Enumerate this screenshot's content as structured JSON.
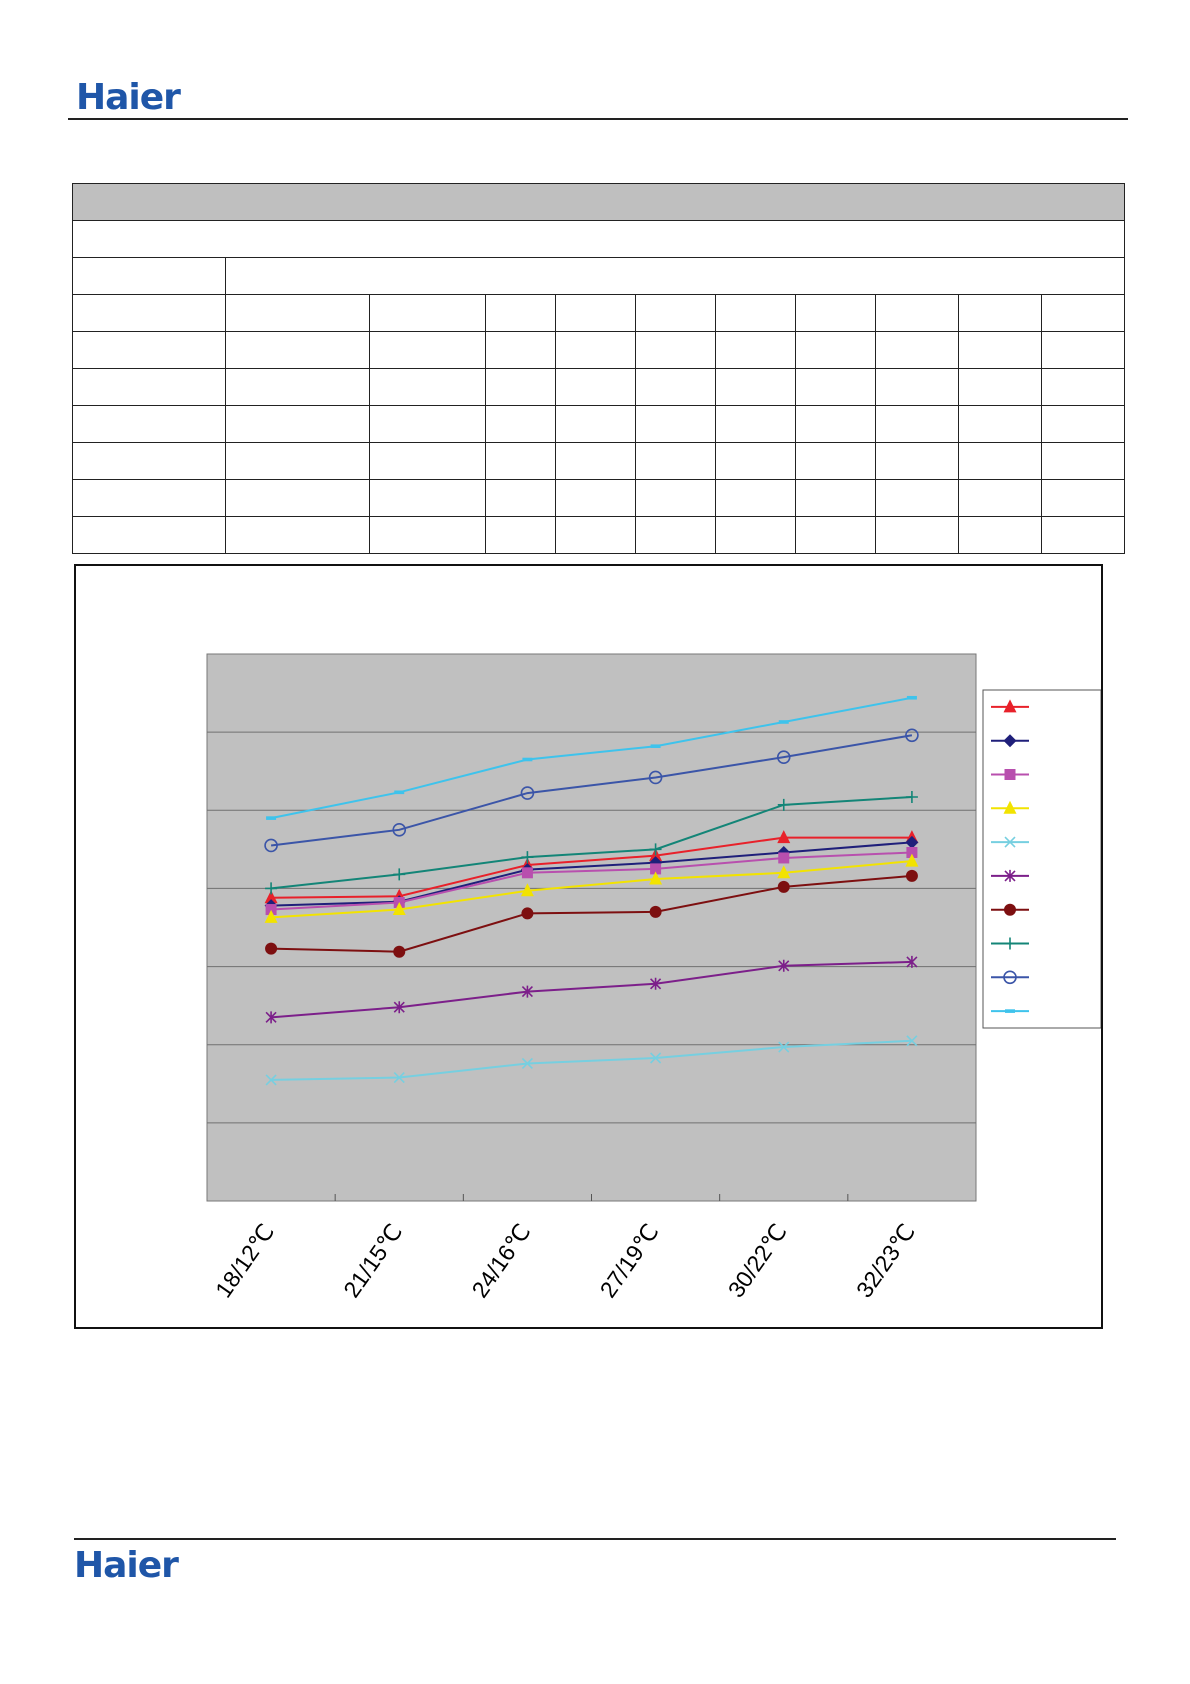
{
  "header": {
    "logo_text": "Haier"
  },
  "footer": {
    "logo_text": "Haier"
  },
  "colors": {
    "brand": "#1f56a8",
    "plot_background": "#c0c0c0",
    "table_header": "#bfbfbf"
  },
  "chart_data": {
    "type": "line",
    "title": "",
    "xlabel": "",
    "ylabel": "",
    "grid": true,
    "legend_position": "right",
    "categories": [
      "18/12℃",
      "21/15℃",
      "24/16℃",
      "27/19℃",
      "30/22℃",
      "32/23℃"
    ],
    "ylim": [
      0,
      7
    ],
    "series": [
      {
        "color": "#e8212a",
        "marker": "triangle",
        "values": [
          3.88,
          3.9,
          4.3,
          4.42,
          4.65,
          4.65
        ]
      },
      {
        "color": "#1f1f7a",
        "marker": "diamond",
        "values": [
          3.78,
          3.83,
          4.24,
          4.33,
          4.46,
          4.59
        ]
      },
      {
        "color": "#b84fae",
        "marker": "square",
        "values": [
          3.73,
          3.82,
          4.2,
          4.25,
          4.39,
          4.46
        ]
      },
      {
        "color": "#f2e300",
        "marker": "triangle",
        "values": [
          3.63,
          3.73,
          3.97,
          4.12,
          4.2,
          4.35
        ]
      },
      {
        "color": "#76cfe0",
        "marker": "x",
        "values": [
          1.55,
          1.58,
          1.76,
          1.83,
          1.97,
          2.05
        ]
      },
      {
        "color": "#7c1f8a",
        "marker": "asterisk",
        "values": [
          2.35,
          2.48,
          2.68,
          2.78,
          3.01,
          3.06
        ]
      },
      {
        "color": "#7d0f10",
        "marker": "circle",
        "values": [
          3.23,
          3.19,
          3.68,
          3.7,
          4.02,
          4.16
        ]
      },
      {
        "color": "#138577",
        "marker": "plus",
        "values": [
          4.0,
          4.18,
          4.4,
          4.5,
          5.07,
          5.17
        ]
      },
      {
        "color": "#3b55a8",
        "marker": "open-circle",
        "values": [
          4.55,
          4.75,
          5.22,
          5.42,
          5.68,
          5.96
        ]
      },
      {
        "color": "#3ec3ec",
        "marker": "dash",
        "values": [
          4.9,
          5.23,
          5.65,
          5.82,
          6.13,
          6.44
        ]
      }
    ]
  }
}
